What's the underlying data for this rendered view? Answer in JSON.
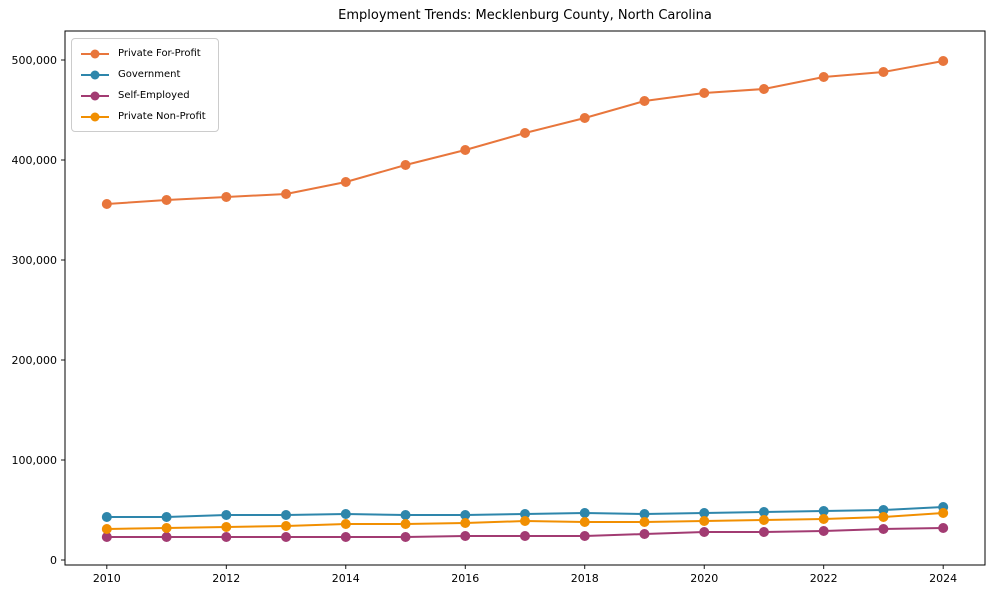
{
  "window": {
    "background": "#ffffff"
  },
  "chart_data": {
    "type": "line",
    "title": "Employment Trends: Mecklenburg County, North Carolina",
    "xlabel": "",
    "ylabel": "",
    "x": [
      2010,
      2011,
      2012,
      2013,
      2014,
      2015,
      2016,
      2017,
      2018,
      2019,
      2020,
      2021,
      2022,
      2023,
      2024
    ],
    "series": [
      {
        "name": "Private For-Profit",
        "color": "#E8763C",
        "values": [
          356000,
          360000,
          363000,
          366000,
          378000,
          395000,
          410000,
          427000,
          442000,
          459000,
          467000,
          471000,
          483000,
          488000,
          499000
        ]
      },
      {
        "name": "Government",
        "color": "#2E86AB",
        "values": [
          43000,
          43000,
          45000,
          45000,
          46000,
          45000,
          45000,
          46000,
          47000,
          46000,
          47000,
          48000,
          49000,
          50000,
          53000
        ]
      },
      {
        "name": "Self-Employed",
        "color": "#A23B72",
        "values": [
          23000,
          23000,
          23000,
          23000,
          23000,
          23000,
          24000,
          24000,
          24000,
          26000,
          28000,
          28000,
          29000,
          31000,
          32000
        ]
      },
      {
        "name": "Private Non-Profit",
        "color": "#F18F01",
        "values": [
          31000,
          32000,
          33000,
          34000,
          36000,
          36000,
          37000,
          39000,
          38000,
          38000,
          39000,
          40000,
          41000,
          43000,
          47000
        ]
      }
    ],
    "xticks": [
      2010,
      2012,
      2014,
      2016,
      2018,
      2020,
      2022,
      2024
    ],
    "xtick_labels": [
      "2010",
      "2012",
      "2014",
      "2016",
      "2018",
      "2020",
      "2022",
      "2024"
    ],
    "yticks": [
      0,
      100000,
      200000,
      300000,
      400000,
      500000
    ],
    "ytick_labels": [
      "0",
      "100,000",
      "200,000",
      "300,000",
      "400,000",
      "500,000"
    ],
    "xlim": [
      2009.3,
      2024.7
    ],
    "ylim": [
      -5000,
      529000
    ],
    "grid": false,
    "legend_position": "upper left",
    "marker": "circle"
  }
}
